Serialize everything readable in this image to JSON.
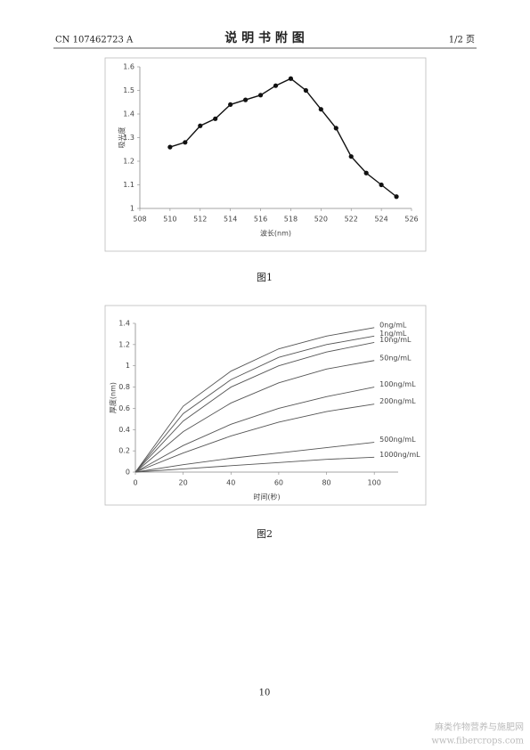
{
  "header": {
    "doc_number": "CN 107462723 A",
    "title": "说 明 书 附 图",
    "page_of": "1/2 页"
  },
  "chart_data": [
    {
      "type": "line",
      "ylabel": "吸光度",
      "xlabel": "波长(nm)",
      "x": [
        510,
        511,
        512,
        513,
        514,
        515,
        516,
        517,
        518,
        519,
        520,
        521,
        522,
        523,
        524,
        525
      ],
      "values": [
        1.26,
        1.28,
        1.35,
        1.38,
        1.44,
        1.46,
        1.48,
        1.52,
        1.55,
        1.5,
        1.42,
        1.34,
        1.22,
        1.15,
        1.1,
        1.05
      ],
      "color": "#111111",
      "markers": true,
      "xlim": [
        508,
        526
      ],
      "xticks": [
        508,
        510,
        512,
        514,
        516,
        518,
        520,
        522,
        524,
        526
      ],
      "ylim": [
        1,
        1.6
      ],
      "yticks": [
        1,
        1.1,
        1.2,
        1.3,
        1.4,
        1.5,
        1.6
      ],
      "grid": false
    },
    {
      "type": "line",
      "ylabel": "厚度(nm)",
      "xlabel": "时间(秒)",
      "x": [
        0,
        20,
        40,
        60,
        80,
        100
      ],
      "series": [
        {
          "name": "0ng/mL",
          "color": "#555555",
          "values": [
            0,
            0.62,
            0.95,
            1.16,
            1.28,
            1.36
          ]
        },
        {
          "name": "1ng/mL",
          "color": "#555555",
          "values": [
            0,
            0.55,
            0.87,
            1.08,
            1.2,
            1.28
          ]
        },
        {
          "name": "10ng/mL",
          "color": "#555555",
          "values": [
            0,
            0.48,
            0.8,
            1.0,
            1.13,
            1.22
          ]
        },
        {
          "name": "50ng/mL",
          "color": "#555555",
          "values": [
            0,
            0.38,
            0.65,
            0.84,
            0.97,
            1.05
          ]
        },
        {
          "name": "100ng/mL",
          "color": "#555555",
          "values": [
            0,
            0.25,
            0.45,
            0.6,
            0.71,
            0.8
          ]
        },
        {
          "name": "200ng/mL",
          "color": "#555555",
          "values": [
            0,
            0.18,
            0.34,
            0.47,
            0.57,
            0.64
          ]
        },
        {
          "name": "500ng/mL",
          "color": "#555555",
          "values": [
            0,
            0.07,
            0.13,
            0.18,
            0.23,
            0.28
          ]
        },
        {
          "name": "1000ng/mL",
          "color": "#555555",
          "values": [
            0,
            0.03,
            0.06,
            0.09,
            0.12,
            0.14
          ]
        }
      ],
      "xlim": [
        0,
        110
      ],
      "xticks": [
        0,
        20,
        40,
        60,
        80,
        100
      ],
      "ylim": [
        0,
        1.4
      ],
      "yticks": [
        0,
        0.2,
        0.4,
        0.6,
        0.8,
        1,
        1.2,
        1.4
      ],
      "grid": false
    }
  ],
  "captions": [
    "图1",
    "图2"
  ],
  "page_number": "10",
  "watermark": {
    "name": "麻类作物营养与施肥网",
    "url": "www.fibercrops.com"
  }
}
